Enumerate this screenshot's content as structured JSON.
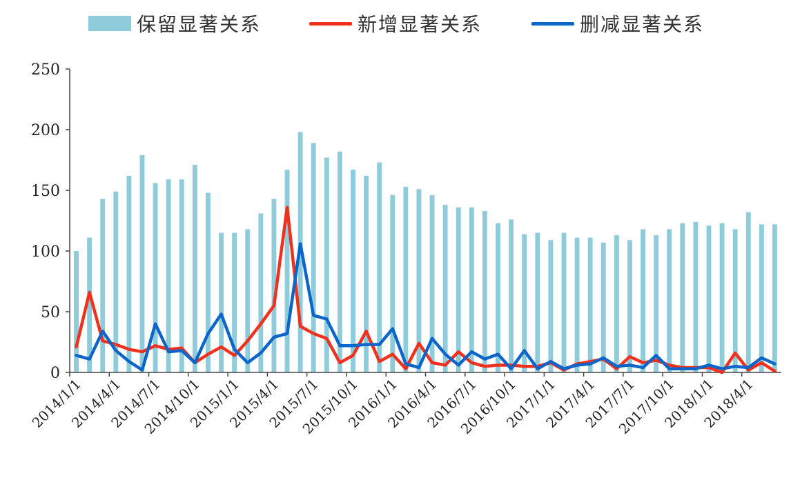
{
  "chart_data": {
    "type": "bar",
    "x": [
      "2014/1/1",
      "2014/2/1",
      "2014/3/1",
      "2014/4/1",
      "2014/5/1",
      "2014/6/1",
      "2014/7/1",
      "2014/8/1",
      "2014/9/1",
      "2014/10/1",
      "2014/11/1",
      "2014/12/1",
      "2015/1/1",
      "2015/2/1",
      "2015/3/1",
      "2015/4/1",
      "2015/5/1",
      "2015/6/1",
      "2015/7/1",
      "2015/8/1",
      "2015/9/1",
      "2015/10/1",
      "2015/11/1",
      "2015/12/1",
      "2016/1/1",
      "2016/2/1",
      "2016/3/1",
      "2016/4/1",
      "2016/5/1",
      "2016/6/1",
      "2016/7/1",
      "2016/8/1",
      "2016/9/1",
      "2016/10/1",
      "2016/11/1",
      "2016/12/1",
      "2017/1/1",
      "2017/2/1",
      "2017/3/1",
      "2017/4/1",
      "2017/5/1",
      "2017/6/1",
      "2017/7/1",
      "2017/8/1",
      "2017/9/1",
      "2017/10/1",
      "2017/11/1",
      "2017/12/1",
      "2018/1/1",
      "2018/2/1",
      "2018/3/1",
      "2018/4/1",
      "2018/5/1",
      "2018/6/1"
    ],
    "xtick_labels": [
      "2014/1/1",
      "2014/4/1",
      "2014/7/1",
      "2014/10/1",
      "2015/1/1",
      "2015/4/1",
      "2015/7/1",
      "2015/10/1",
      "2016/1/1",
      "2016/4/1",
      "2016/7/1",
      "2016/10/1",
      "2017/1/1",
      "2017/4/1",
      "2017/7/1",
      "2017/10/1",
      "2018/1/1",
      "2018/4/1"
    ],
    "ylim": [
      0,
      250
    ],
    "yticks": [
      0,
      50,
      100,
      150,
      200,
      250
    ],
    "grid": false,
    "legend_position": "top",
    "series": [
      {
        "name": "保留显著关系",
        "type": "bar",
        "color": "#8ecbdb",
        "values": [
          100,
          111,
          143,
          149,
          162,
          179,
          156,
          159,
          159,
          171,
          148,
          115,
          115,
          118,
          131,
          143,
          167,
          198,
          189,
          177,
          182,
          167,
          162,
          173,
          146,
          153,
          151,
          146,
          138,
          136,
          136,
          133,
          123,
          126,
          114,
          115,
          109,
          115,
          111,
          111,
          107,
          113,
          109,
          118,
          113,
          118,
          123,
          124,
          121,
          123,
          118,
          132,
          122,
          122
        ]
      },
      {
        "name": "新增显著关系",
        "type": "line",
        "color": "#f0311d",
        "values": [
          21,
          66,
          26,
          23,
          19,
          17,
          22,
          19,
          20,
          8,
          15,
          21,
          14,
          26,
          40,
          55,
          136,
          38,
          32,
          28,
          8,
          14,
          34,
          9,
          15,
          3,
          24,
          8,
          6,
          17,
          8,
          5,
          6,
          6,
          5,
          5,
          8,
          2,
          7,
          9,
          11,
          3,
          13,
          8,
          10,
          6,
          4,
          4,
          4,
          0,
          16,
          2,
          8,
          1
        ]
      },
      {
        "name": "删减显著关系",
        "type": "line",
        "color": "#0c65c9",
        "values": [
          14,
          11,
          34,
          18,
          9,
          2,
          40,
          17,
          18,
          8,
          32,
          48,
          19,
          8,
          16,
          29,
          32,
          106,
          47,
          44,
          22,
          22,
          23,
          23,
          36,
          7,
          4,
          28,
          15,
          6,
          17,
          11,
          15,
          3,
          18,
          3,
          9,
          3,
          6,
          7,
          12,
          5,
          6,
          4,
          14,
          3,
          3,
          3,
          6,
          3,
          5,
          4,
          12,
          7
        ]
      }
    ]
  }
}
